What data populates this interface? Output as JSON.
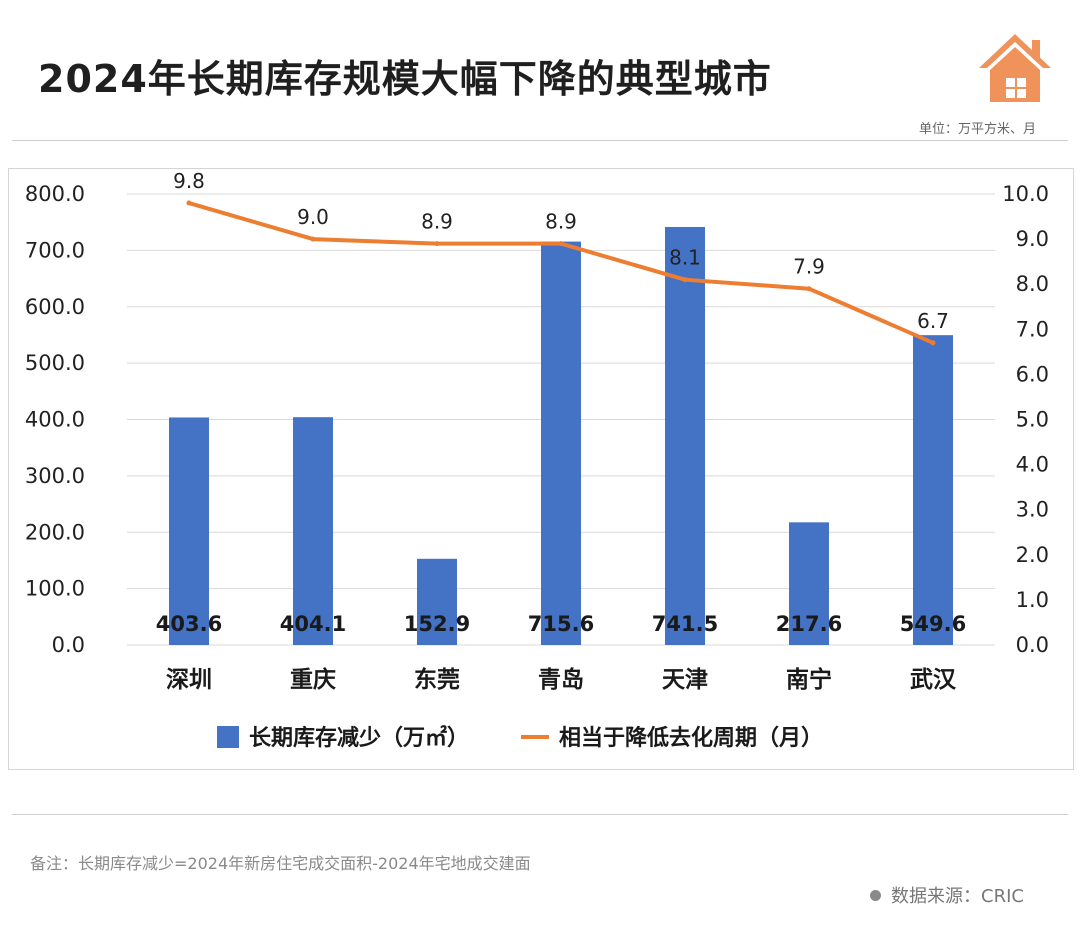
{
  "header": {
    "title": "2024年长期库存规模大幅下降的典型城市",
    "unit": "单位：万平方米、月",
    "logo_icon": "house-icon",
    "logo_color": "#F0935A"
  },
  "chart_data": {
    "type": "bar",
    "categories": [
      "深圳",
      "重庆",
      "东莞",
      "青岛",
      "天津",
      "南宁",
      "武汉"
    ],
    "series": [
      {
        "name": "长期库存减少（万㎡）",
        "type": "bar",
        "axis": "left",
        "color": "#4472C4",
        "values": [
          403.6,
          404.1,
          152.9,
          715.6,
          741.5,
          217.6,
          549.6
        ],
        "labels": [
          "403.6",
          "404.1",
          "152.9",
          "715.6",
          "741.5",
          "217.6",
          "549.6"
        ]
      },
      {
        "name": "相当于降低去化周期（月）",
        "type": "line",
        "axis": "right",
        "color": "#ED7D31",
        "values": [
          9.8,
          9.0,
          8.9,
          8.9,
          8.1,
          7.9,
          6.7
        ],
        "labels": [
          "9.8",
          "9.0",
          "8.9",
          "8.9",
          "8.1",
          "7.9",
          "6.7"
        ]
      }
    ],
    "y_left": {
      "range": [
        0,
        800
      ],
      "ticks": [
        "0.0",
        "100.0",
        "200.0",
        "300.0",
        "400.0",
        "500.0",
        "600.0",
        "700.0",
        "800.0"
      ]
    },
    "y_right": {
      "range": [
        0,
        10
      ],
      "ticks": [
        "0.0",
        "1.0",
        "2.0",
        "3.0",
        "4.0",
        "5.0",
        "6.0",
        "7.0",
        "8.0",
        "9.0",
        "10.0"
      ]
    },
    "grid": true,
    "legend": "bottom"
  },
  "footer": {
    "note": "备注：长期库存减少=2024年新房住宅成交面积-2024年宅地成交建面",
    "source": "数据来源：CRIC"
  }
}
